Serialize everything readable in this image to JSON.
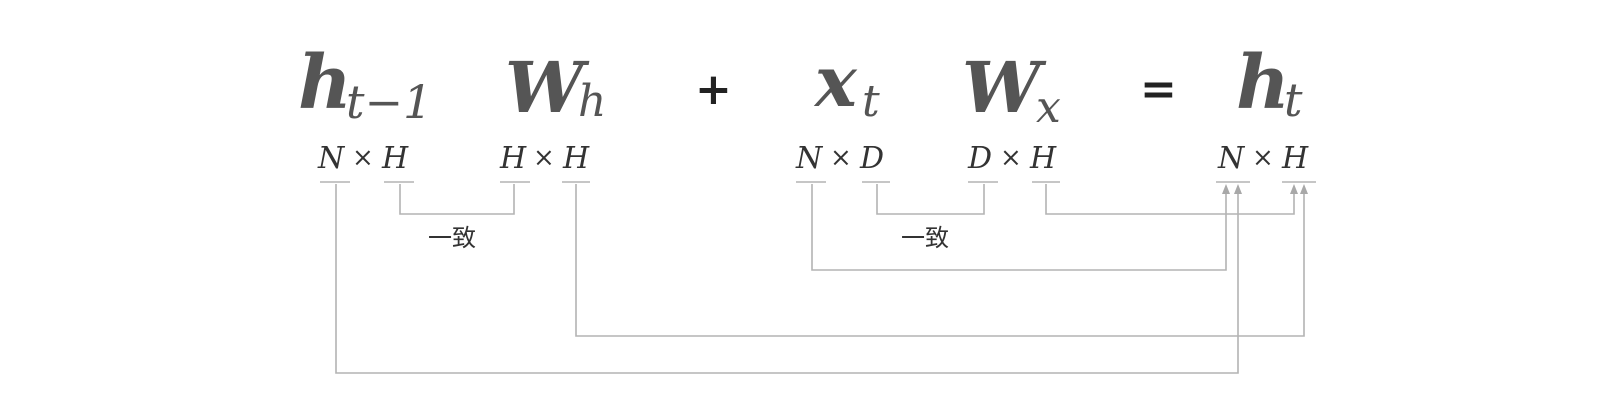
{
  "equation": {
    "term1": {
      "base": "h",
      "sub": "t−1"
    },
    "term2": {
      "base": "W",
      "sub": "h"
    },
    "plus": "+",
    "term3": {
      "base": "x",
      "sub": "t"
    },
    "term4": {
      "base": "W",
      "sub": "x"
    },
    "equals": "=",
    "term5": {
      "base": "h",
      "sub": "t"
    }
  },
  "shapes": {
    "s1": {
      "a": "N",
      "x": "×",
      "b": "H"
    },
    "s2": {
      "a": "H",
      "x": "×",
      "b": "H"
    },
    "s3": {
      "a": "N",
      "x": "×",
      "b": "D"
    },
    "s4": {
      "a": "D",
      "x": "×",
      "b": "H"
    },
    "s5": {
      "a": "N",
      "x": "×",
      "b": "H"
    }
  },
  "notes": {
    "match_left": "一致",
    "match_right": "一致"
  }
}
